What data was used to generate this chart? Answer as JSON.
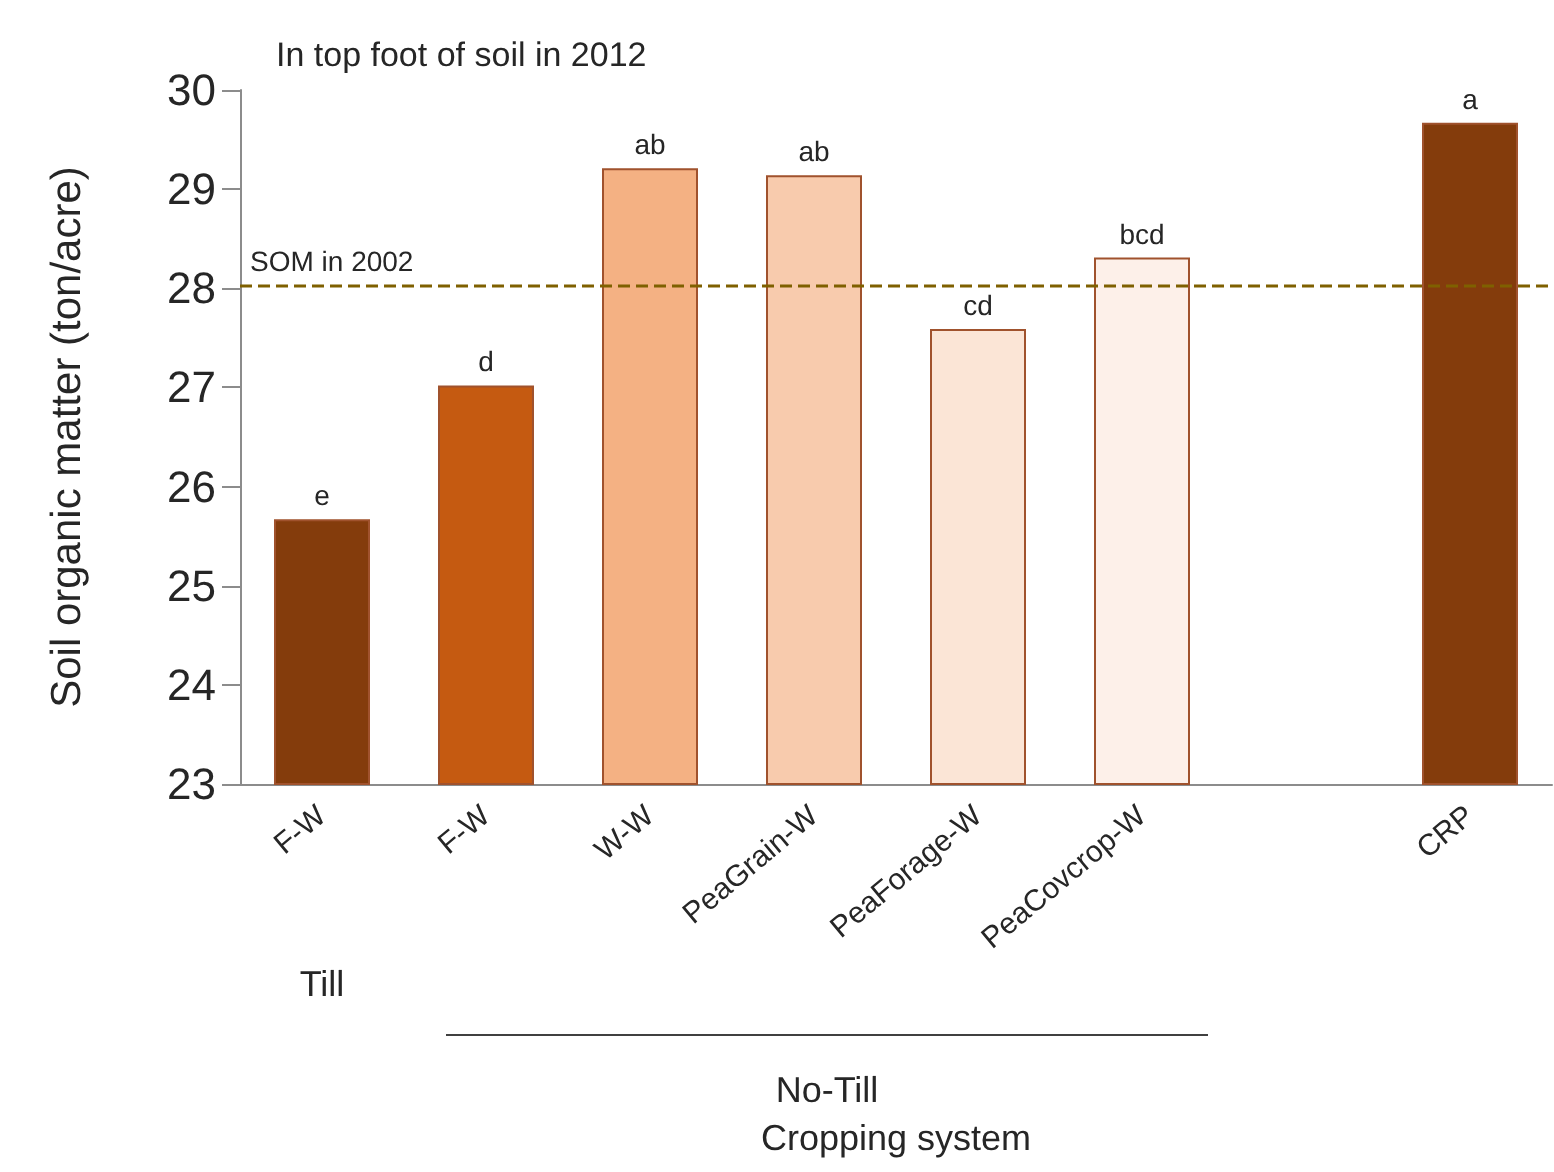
{
  "chart_data": {
    "type": "bar",
    "title": "In top foot of soil in 2012",
    "xlabel": "Cropping system",
    "ylabel": "Soil organic matter (ton/acre)",
    "categories": [
      "F-W",
      "F-W",
      "W-W",
      "PeaGrain-W",
      "PeaForage-W",
      "PeaCovcrop-W",
      null,
      "CRP"
    ],
    "values": [
      25.67,
      27.02,
      29.21,
      29.14,
      27.59,
      28.31,
      null,
      29.67
    ],
    "colors": [
      "#843c0c",
      "#c55a11",
      "#f4b183",
      "#f8cbad",
      "#fbe5d6",
      "#fdf0e9",
      null,
      "#843c0c"
    ],
    "value_labels": [
      "e",
      "d",
      "ab",
      "ab",
      "cd",
      "bcd",
      null,
      "a"
    ],
    "ylim": [
      23,
      30
    ],
    "yticks": [
      23,
      24,
      25,
      26,
      27,
      28,
      29,
      30
    ],
    "grid": false,
    "ref_lines": [
      {
        "axis": "y",
        "value": 28.03,
        "label": "SOM in 2002",
        "color": "#7f6000",
        "line_style": "dashed"
      }
    ],
    "annotations": [
      "Till",
      "No-Till"
    ]
  }
}
